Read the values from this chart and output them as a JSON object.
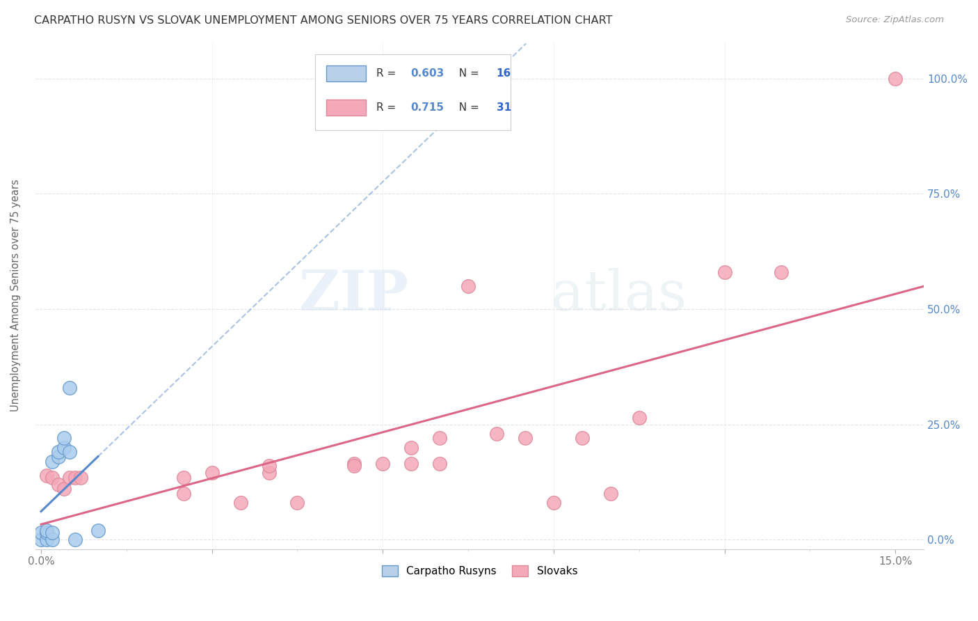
{
  "title": "CARPATHO RUSYN VS SLOVAK UNEMPLOYMENT AMONG SENIORS OVER 75 YEARS CORRELATION CHART",
  "source": "Source: ZipAtlas.com",
  "ylabel_left": "Unemployment Among Seniors over 75 years",
  "xlim": [
    -0.001,
    0.155
  ],
  "ylim": [
    -0.02,
    1.08
  ],
  "watermark_zip": "ZIP",
  "watermark_atlas": "atlas",
  "legend_entries": [
    {
      "label": "Carpatho Rusyns",
      "R": "0.603",
      "N": "16",
      "color": "#b8d0e8"
    },
    {
      "label": "Slovaks",
      "R": "0.715",
      "N": "31",
      "color": "#f4a8b8"
    }
  ],
  "rusyn_line_color": "#5588cc",
  "slovak_line_color": "#dd6688",
  "rusyn_dot_facecolor": "#aaccee",
  "rusyn_dot_edgecolor": "#6699cc",
  "slovak_dot_facecolor": "#f4a8b8",
  "slovak_dot_edgecolor": "#dd8899",
  "background_color": "#ffffff",
  "grid_color": "#dddddd",
  "title_color": "#333333",
  "axis_label_color": "#5588cc",
  "legend_R_color": "#5588cc",
  "legend_N_color": "#3366cc",
  "carpatho_rusyn_points": [
    [
      0.0,
      0.0
    ],
    [
      0.0,
      0.015
    ],
    [
      0.001,
      0.0
    ],
    [
      0.001,
      0.015
    ],
    [
      0.001,
      0.02
    ],
    [
      0.002,
      0.0
    ],
    [
      0.002,
      0.015
    ],
    [
      0.002,
      0.17
    ],
    [
      0.003,
      0.18
    ],
    [
      0.003,
      0.19
    ],
    [
      0.004,
      0.2
    ],
    [
      0.004,
      0.22
    ],
    [
      0.005,
      0.33
    ],
    [
      0.005,
      0.19
    ],
    [
      0.006,
      0.0
    ],
    [
      0.01,
      0.02
    ]
  ],
  "slovak_points": [
    [
      0.001,
      0.14
    ],
    [
      0.002,
      0.135
    ],
    [
      0.003,
      0.12
    ],
    [
      0.004,
      0.11
    ],
    [
      0.005,
      0.135
    ],
    [
      0.006,
      0.135
    ],
    [
      0.007,
      0.135
    ],
    [
      0.025,
      0.135
    ],
    [
      0.025,
      0.1
    ],
    [
      0.03,
      0.145
    ],
    [
      0.035,
      0.08
    ],
    [
      0.04,
      0.145
    ],
    [
      0.04,
      0.16
    ],
    [
      0.045,
      0.08
    ],
    [
      0.055,
      0.165
    ],
    [
      0.055,
      0.16
    ],
    [
      0.06,
      0.165
    ],
    [
      0.065,
      0.2
    ],
    [
      0.065,
      0.165
    ],
    [
      0.07,
      0.22
    ],
    [
      0.07,
      0.165
    ],
    [
      0.075,
      0.55
    ],
    [
      0.08,
      0.23
    ],
    [
      0.085,
      0.22
    ],
    [
      0.09,
      0.08
    ],
    [
      0.095,
      0.22
    ],
    [
      0.1,
      0.1
    ],
    [
      0.105,
      0.265
    ],
    [
      0.12,
      0.58
    ],
    [
      0.13,
      0.58
    ],
    [
      0.15,
      1.0
    ]
  ]
}
